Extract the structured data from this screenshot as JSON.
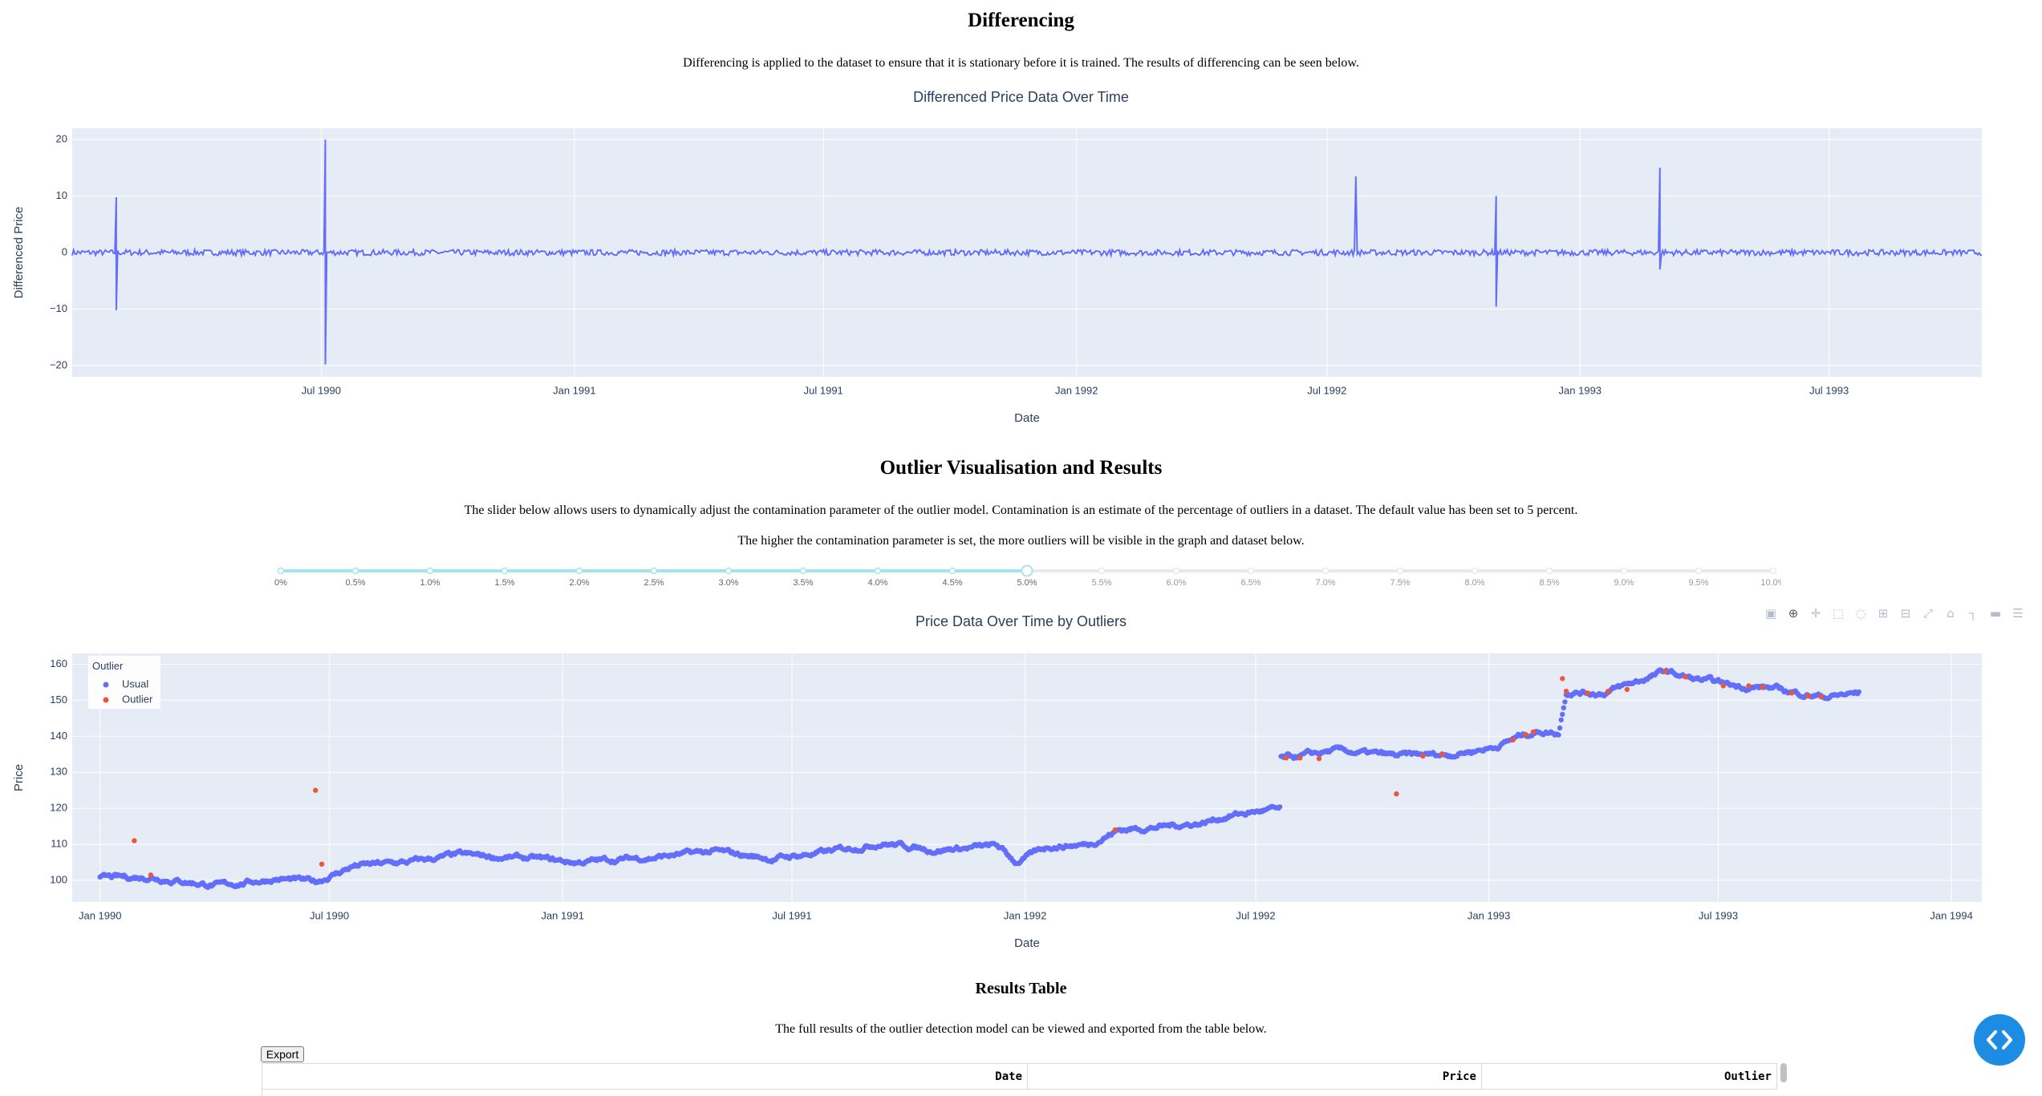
{
  "differencing": {
    "heading": "Differencing",
    "description": "Differencing is applied to the dataset to ensure that it is stationary before it is trained. The results of differencing can be seen below.",
    "chart_title": "Differenced Price Data Over Time"
  },
  "outliers": {
    "heading": "Outlier Visualisation and Results",
    "description_1": "The slider below allows users to dynamically adjust the contamination parameter of the outlier model. Contamination is an estimate of the percentage of outliers in a dataset. The default value has been set to 5 percent.",
    "description_2": "The higher the contamination parameter is set, the more outliers will be visible in the graph and dataset below.",
    "chart_title": "Price Data Over Time by Outliers"
  },
  "slider": {
    "marks": [
      "0%",
      "0.5%",
      "1.0%",
      "1.5%",
      "2.0%",
      "2.5%",
      "3.0%",
      "3.5%",
      "4.0%",
      "4.5%",
      "5.0%",
      "5.5%",
      "6.0%",
      "6.5%",
      "7.0%",
      "7.5%",
      "8.0%",
      "8.5%",
      "9.0%",
      "9.5%",
      "10.0%"
    ],
    "value_index": 10,
    "active_color": "#a5e4ec",
    "handle_color": "#a5e4ec"
  },
  "modebar": {
    "icons": [
      "camera-icon",
      "zoom-icon",
      "pan-icon",
      "box-select-icon",
      "lasso-icon",
      "zoom-in-icon",
      "zoom-out-icon",
      "autoscale-icon",
      "reset-axes-icon",
      "spike-lines-icon",
      "hover-closest-icon",
      "hover-compare-icon",
      "plotly-logo-icon"
    ]
  },
  "results": {
    "heading": "Results Table",
    "description": "The full results of the outlier detection model can be viewed and exported from the table below.",
    "export_label": "Export",
    "columns": [
      "Date",
      "Price",
      "Outlier"
    ]
  },
  "colors": {
    "plot_bg": "#e5ecf6",
    "line": "#636efa",
    "outlier": "#ef553b",
    "axis_text": "#2a3f5f"
  },
  "chart_data": [
    {
      "type": "line",
      "title": "Differenced Price Data Over Time",
      "xlabel": "Date",
      "ylabel": "Differenced Price",
      "x_range": [
        "1990-01-01",
        "1993-10-20"
      ],
      "ylim": [
        -22,
        22
      ],
      "x_ticks": [
        "Jul 1990",
        "Jan 1991",
        "Jul 1991",
        "Jan 1992",
        "Jul 1992",
        "Jan 1993",
        "Jul 1993"
      ],
      "x_tick_dates": [
        "1990-07-01",
        "1991-01-01",
        "1991-07-01",
        "1992-01-01",
        "1992-07-01",
        "1993-01-01",
        "1993-07-01"
      ],
      "y_ticks": [
        -20,
        -10,
        0,
        10,
        20
      ],
      "baseline_amplitude": 0.5,
      "spikes": [
        {
          "date": "1990-02-02",
          "up": 9.8,
          "down": -10.2
        },
        {
          "date": "1990-07-04",
          "up": 20,
          "down": -19.8
        },
        {
          "date": "1992-07-22",
          "up": 13.5,
          "down": 0
        },
        {
          "date": "1992-11-01",
          "up": 10,
          "down": -9.6
        },
        {
          "date": "1993-02-28",
          "up": 15,
          "down": -3
        }
      ],
      "grid": true
    },
    {
      "type": "scatter",
      "title": "Price Data Over Time by Outliers",
      "xlabel": "Date",
      "ylabel": "Price",
      "x_range": [
        "1989-12-10",
        "1994-01-25"
      ],
      "ylim": [
        94,
        163
      ],
      "x_ticks": [
        "Jan 1990",
        "Jul 1990",
        "Jan 1991",
        "Jul 1991",
        "Jan 1992",
        "Jul 1992",
        "Jan 1993",
        "Jul 1993",
        "Jan 1994"
      ],
      "x_tick_dates": [
        "1990-01-01",
        "1990-07-01",
        "1991-01-01",
        "1991-07-01",
        "1992-01-01",
        "1992-07-01",
        "1993-01-01",
        "1993-07-01",
        "1994-01-01"
      ],
      "y_ticks": [
        100,
        110,
        120,
        130,
        140,
        150,
        160
      ],
      "legend": {
        "title": "Outlier",
        "position": "top-left",
        "entries": [
          "Usual",
          "Outlier"
        ]
      },
      "series": [
        {
          "name": "Usual",
          "trend": [
            [
              "1990-01-01",
              100.5
            ],
            [
              "1990-02-10",
              101
            ],
            [
              "1990-04-05",
              98.5
            ],
            [
              "1990-05-20",
              100.5
            ],
            [
              "1990-06-20",
              99.5
            ],
            [
              "1990-07-20",
              104
            ],
            [
              "1990-09-01",
              105
            ],
            [
              "1990-10-10",
              107
            ],
            [
              "1990-12-10",
              106
            ],
            [
              "1991-01-10",
              105
            ],
            [
              "1991-03-15",
              106.5
            ],
            [
              "1991-05-01",
              108
            ],
            [
              "1991-06-15",
              106
            ],
            [
              "1991-08-01",
              108
            ],
            [
              "1991-09-10",
              110.5
            ],
            [
              "1991-10-20",
              108.5
            ],
            [
              "1991-12-10",
              109.5
            ],
            [
              "1991-12-25",
              105
            ],
            [
              "1992-01-20",
              109.5
            ],
            [
              "1992-02-20",
              110
            ],
            [
              "1992-03-15",
              114
            ],
            [
              "1992-04-20",
              115
            ],
            [
              "1992-05-20",
              116
            ],
            [
              "1992-06-10",
              118
            ],
            [
              "1992-07-10",
              119.5
            ],
            [
              "1992-07-20",
              119.5
            ],
            [
              "1992-07-21",
              133.5
            ],
            [
              "1992-09-01",
              136
            ],
            [
              "1992-10-20",
              134.5
            ],
            [
              "1992-12-01",
              135
            ],
            [
              "1993-01-05",
              137
            ],
            [
              "1993-01-25",
              140
            ],
            [
              "1993-02-10",
              141.5
            ],
            [
              "1993-02-25",
              141
            ],
            [
              "1993-03-03",
              152.5
            ],
            [
              "1993-04-01",
              152
            ],
            [
              "1993-05-01",
              155.5
            ],
            [
              "1993-05-20",
              158
            ],
            [
              "1993-06-10",
              156
            ],
            [
              "1993-07-15",
              154
            ],
            [
              "1993-08-10",
              153.5
            ],
            [
              "1993-09-01",
              152
            ],
            [
              "1993-09-25",
              151
            ],
            [
              "1993-10-20",
              152
            ]
          ]
        },
        {
          "name": "Outlier",
          "points": [
            [
              "1990-01-28",
              111
            ],
            [
              "1990-06-20",
              125
            ],
            [
              "1992-10-20",
              124
            ],
            [
              "1993-02-28",
              156
            ],
            [
              "1993-03-03",
              152.5
            ],
            [
              "1993-05-20",
              158
            ],
            [
              "1993-04-05",
              152.5
            ],
            [
              "1992-07-25",
              134
            ],
            [
              "1992-11-10",
              134.5
            ],
            [
              "1993-01-30",
              140.5
            ],
            [
              "1993-07-25",
              154
            ],
            [
              "1993-09-20",
              151
            ],
            [
              "1992-03-12",
              114
            ],
            [
              "1990-06-25",
              104.5
            ],
            [
              "1990-02-10",
              101.5
            ]
          ]
        }
      ],
      "grid": true
    }
  ]
}
